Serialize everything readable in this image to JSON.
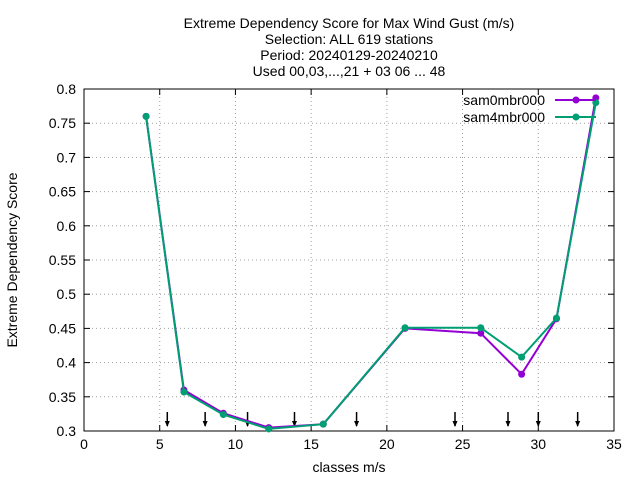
{
  "chart_data": {
    "type": "line",
    "title_lines": [
      "Extreme Dependency Score  for Max Wind Gust (m/s)",
      "Selection: ALL    619 stations",
      "Period: 20240129-20240210",
      "Used 00,03,...,21 + 03 06 ... 48"
    ],
    "xlabel": "classes m/s",
    "ylabel": "Extreme Dependency Score",
    "xlim": [
      0,
      35
    ],
    "ylim": [
      0.3,
      0.8
    ],
    "xticks": [
      0,
      5,
      10,
      15,
      20,
      25,
      30,
      35
    ],
    "yticks": [
      0.3,
      0.35,
      0.4,
      0.45,
      0.5,
      0.55,
      0.6,
      0.65,
      0.7,
      0.75,
      0.8
    ],
    "ytick_labels": [
      "0.3",
      "0.35",
      "0.4",
      "0.45",
      "0.5",
      "0.55",
      "0.6",
      "0.65",
      "0.7",
      "0.75",
      "0.8"
    ],
    "grid": true,
    "legend_position": "top-right",
    "threshold_markers_x": [
      5.5,
      8.0,
      10.8,
      13.9,
      18.0,
      24.5,
      28.0,
      30.0,
      32.6
    ],
    "series": [
      {
        "name": "sam0mbr000",
        "color": "#9400d3",
        "x": [
          4.1,
          6.6,
          9.2,
          12.2,
          15.8,
          21.2,
          26.2,
          28.9,
          31.2,
          33.8
        ],
        "y": [
          0.76,
          0.36,
          0.326,
          0.305,
          0.31,
          0.45,
          0.443,
          0.383,
          0.464,
          0.787
        ]
      },
      {
        "name": "sam4mbr000",
        "color": "#009e73",
        "x": [
          4.1,
          6.6,
          9.2,
          12.2,
          15.8,
          21.2,
          26.2,
          28.9,
          31.2,
          33.8
        ],
        "y": [
          0.76,
          0.357,
          0.324,
          0.303,
          0.31,
          0.451,
          0.451,
          0.408,
          0.465,
          0.78
        ]
      }
    ]
  }
}
